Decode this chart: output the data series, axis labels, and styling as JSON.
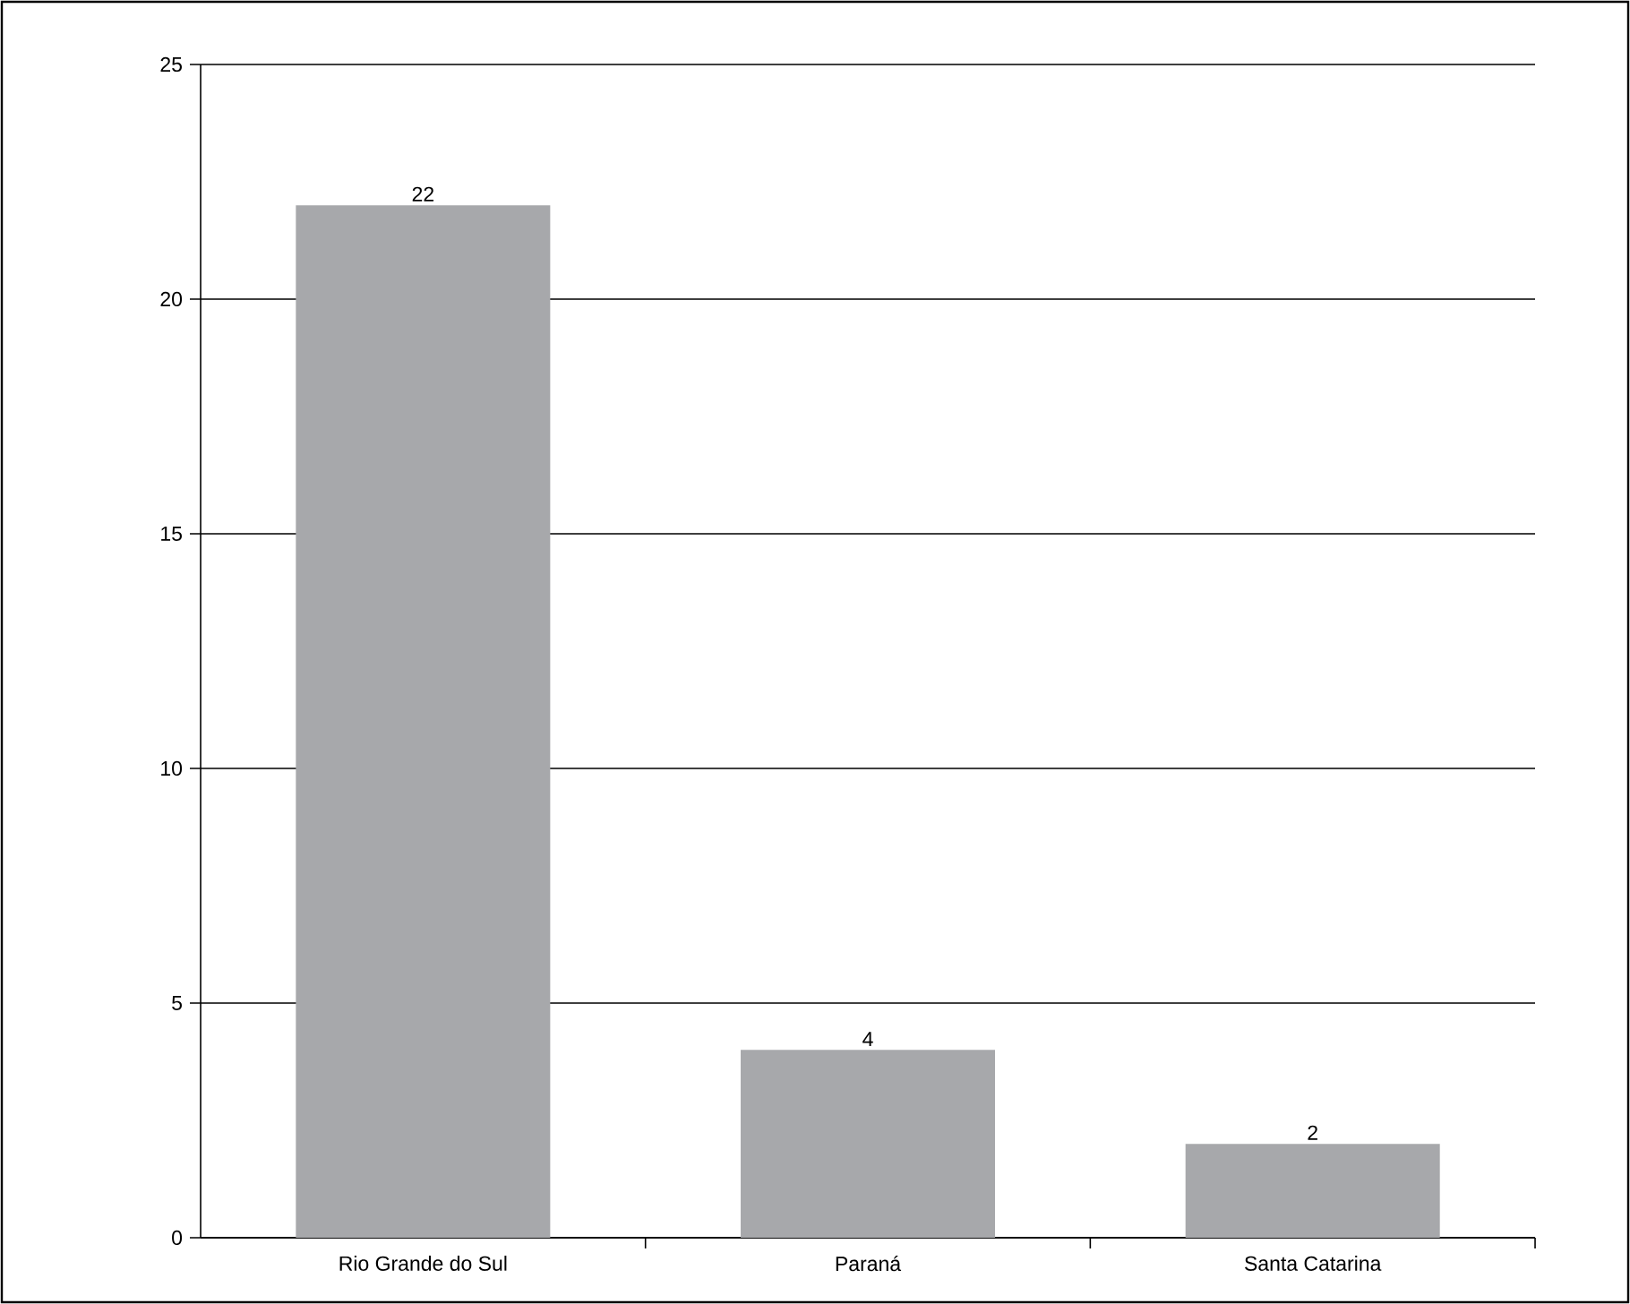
{
  "chart_data": {
    "type": "bar",
    "categories": [
      "Rio Grande do Sul",
      "Paraná",
      "Santa Catarina"
    ],
    "values": [
      22,
      4,
      2
    ],
    "color": "#a7a8ab",
    "ylim": [
      0,
      25
    ],
    "yticks": [
      0,
      5,
      10,
      15,
      20,
      25
    ],
    "grid": "y",
    "data_labels": true
  }
}
